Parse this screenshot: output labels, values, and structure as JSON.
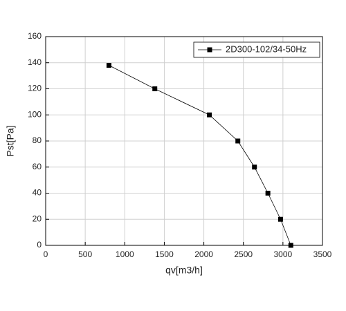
{
  "chart_data": {
    "type": "line",
    "x_label": "qv[m3/h]",
    "y_label": "Pst[Pa]",
    "x": [
      800,
      1380,
      2070,
      2430,
      2640,
      2810,
      2970,
      3100
    ],
    "series": [
      {
        "name": "2D300-102/34-50Hz",
        "color": "#000000",
        "values": [
          138,
          120,
          100,
          80,
          60,
          40,
          20,
          0
        ]
      }
    ],
    "xlim": [
      0,
      3500
    ],
    "xticks": [
      0,
      500,
      1000,
      1500,
      2000,
      2500,
      3000,
      3500
    ],
    "ylim": [
      0,
      160
    ],
    "yticks": [
      0,
      20,
      40,
      60,
      80,
      100,
      120,
      140,
      160
    ],
    "grid": true,
    "legend": "top-right"
  }
}
